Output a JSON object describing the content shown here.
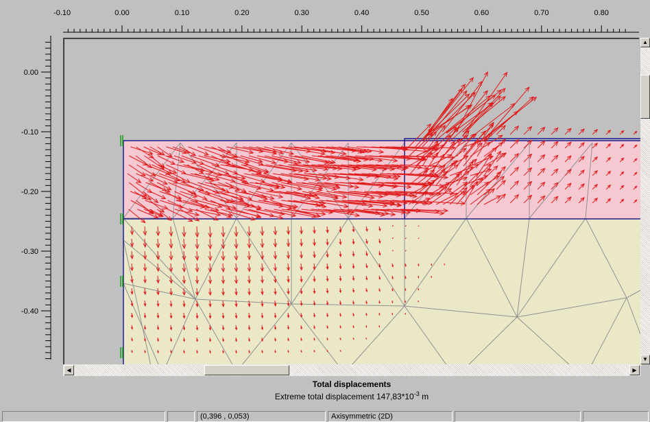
{
  "ruler": {
    "x_ticks": [
      "-0.10",
      "0.00",
      "0.10",
      "0.20",
      "0.30",
      "0.40",
      "0.50",
      "0.60",
      "0.70",
      "0.80"
    ],
    "y_ticks": [
      "0.00",
      "-0.10",
      "-0.20",
      "-0.30",
      "-0.40"
    ]
  },
  "caption": {
    "title": "Total displacements",
    "subtitle_prefix": "Extreme total displacement 147,83*10",
    "subtitle_exponent": "-3",
    "subtitle_unit": " m"
  },
  "statusbar": {
    "panels": [
      "",
      "",
      "(0,396 , 0,053)",
      "Axisymmetric (2D)",
      "",
      ""
    ]
  },
  "colors": {
    "upper_layer": "#f5c8d2",
    "lower_layer": "#ebe8c8",
    "mesh": "#909090",
    "boundary": "#1c1c8c",
    "arrows": "#e01818",
    "fixity": "#1a9a1a"
  },
  "icons": {
    "scroll_up": "up-arrow-icon",
    "scroll_down": "down-arrow-icon",
    "scroll_left": "left-arrow-icon",
    "scroll_right": "right-arrow-icon"
  }
}
